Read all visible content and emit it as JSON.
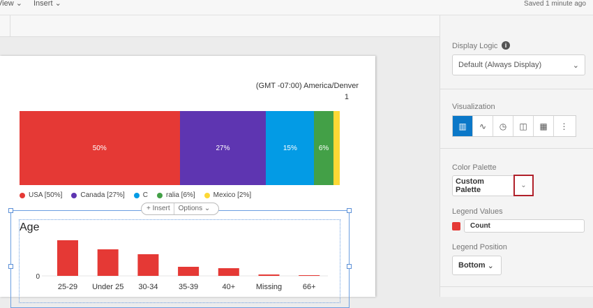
{
  "menubar": {
    "items": [
      {
        "label": "View"
      },
      {
        "label": "Insert"
      }
    ],
    "status": "Saved 1 minute ago"
  },
  "page": {
    "timezone": "(GMT -07:00) America/Denver",
    "page_number": "1"
  },
  "stacked": {
    "segments": [
      {
        "name": "USA",
        "value": 50,
        "label": "50%",
        "legend": "USA [50%]",
        "color": "#e53935"
      },
      {
        "name": "Canada",
        "value": 27,
        "label": "27%",
        "legend": "Canada [27%]",
        "color": "#5e35b1"
      },
      {
        "name": "C…",
        "value": 15,
        "label": "15%",
        "legend": "C",
        "color": "#039be5"
      },
      {
        "name": "…ralia",
        "value": 6,
        "label": "6%",
        "legend": "ralia [6%]",
        "color": "#43a047"
      },
      {
        "name": "Mexico",
        "value": 2,
        "label": "",
        "legend": "Mexico [2%]",
        "color": "#fdd835"
      }
    ]
  },
  "overlay": {
    "insert": "Insert",
    "options": "Options"
  },
  "chart_data": {
    "type": "bar",
    "title": "Age",
    "categories": [
      "25-29",
      "Under 25",
      "30-34",
      "35-39",
      "40+",
      "Missing",
      "66+"
    ],
    "values": [
      51,
      38,
      31,
      13,
      11,
      2,
      0.5
    ],
    "yticks": [
      "0"
    ],
    "color": "#e53935",
    "grid": false
  },
  "panel": {
    "display_logic": {
      "label": "Display Logic",
      "value": "Default (Always Display)"
    },
    "visualization": {
      "label": "Visualization",
      "options": [
        "bar-chart-icon",
        "line-chart-icon",
        "pie-chart-icon",
        "columns-icon",
        "table-icon",
        "more-icon"
      ],
      "selected": "bar-chart-icon",
      "accent": "#0b78c8"
    },
    "color_palette": {
      "label": "Color Palette",
      "value": "Custom Palette"
    },
    "legend_values": {
      "label": "Legend Values",
      "value": "Count",
      "color": "#e53935"
    },
    "legend_position": {
      "label": "Legend Position",
      "value": "Bottom"
    }
  }
}
